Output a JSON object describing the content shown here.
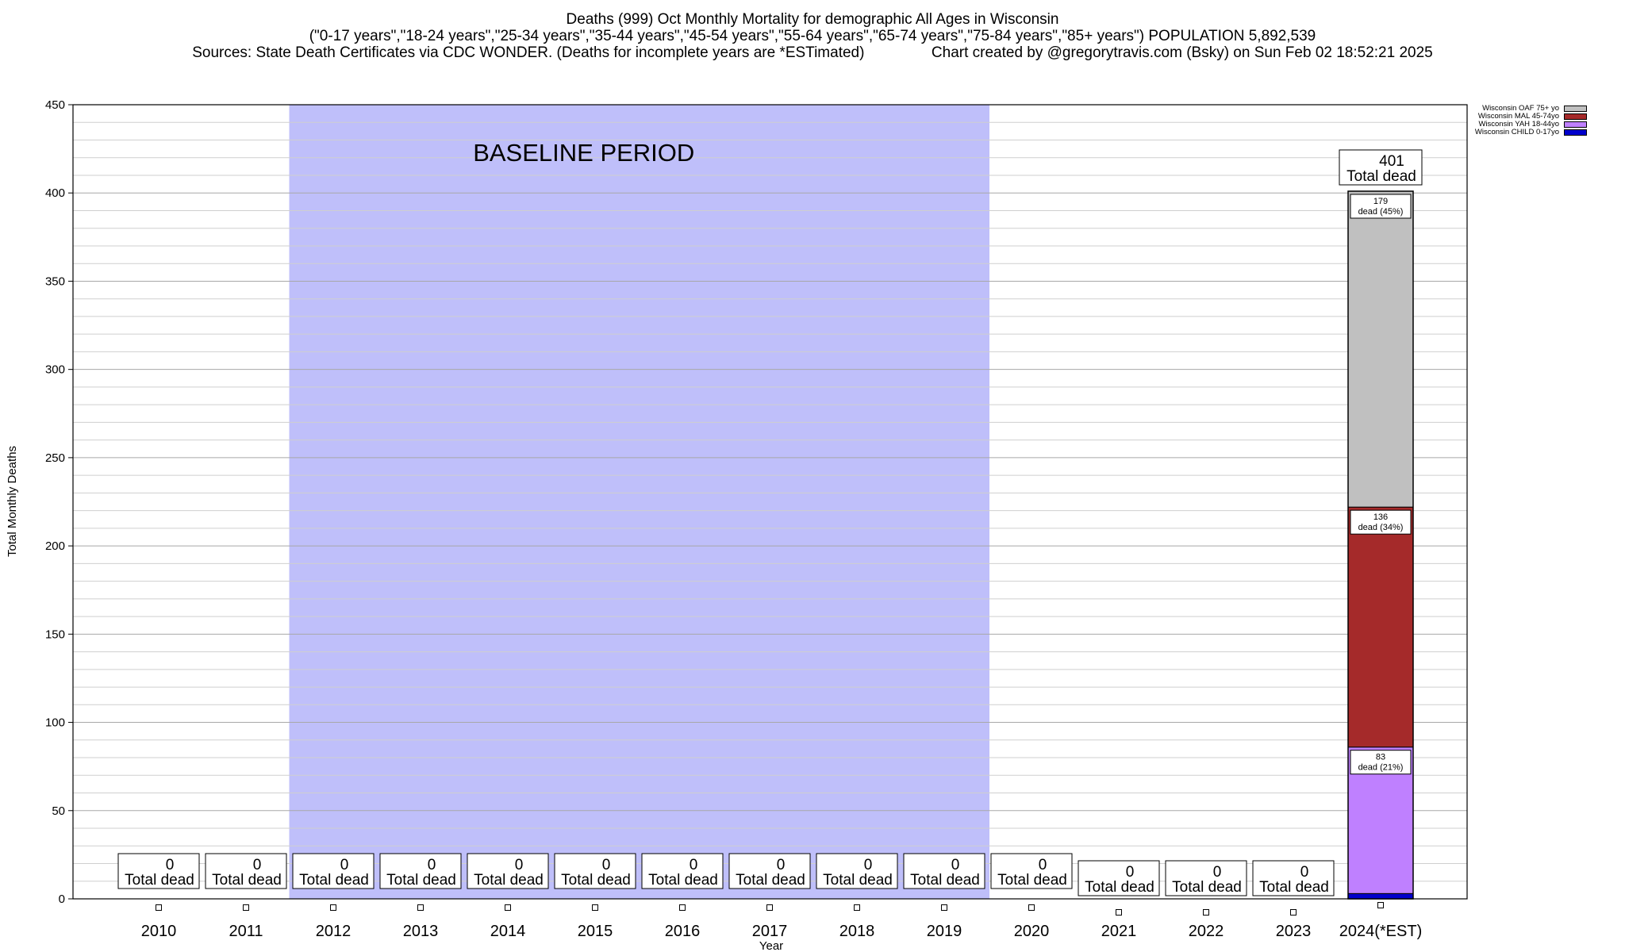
{
  "title": {
    "line1": "Deaths (999) Oct Monthly Mortality for demographic All Ages in Wisconsin",
    "line2": "(\"0-17 years\",\"18-24 years\",\"25-34 years\",\"35-44 years\",\"45-54 years\",\"55-64 years\",\"65-74 years\",\"75-84 years\",\"85+ years\") POPULATION 5,892,539",
    "line3a": "Sources: State Death Certificates via CDC WONDER. (Deaths for incomplete years are *ESTimated)",
    "line3b": "Chart created by @gregorytravis.com (Bsky) on Sun Feb 02 18:52:21 2025"
  },
  "legend": [
    {
      "label": "Wisconsin OAF 75+ yo",
      "color": "#c0c0c0"
    },
    {
      "label": "Wisconsin MAL 45-74yo",
      "color": "#a52a2a"
    },
    {
      "label": "Wisconsin YAH 18-44yo",
      "color": "#bf80ff"
    },
    {
      "label": "Wisconsin CHILD 0-17yo",
      "color": "#0000cd"
    }
  ],
  "chart_data": {
    "type": "bar",
    "stacked": true,
    "xlabel": "Year",
    "ylabel": "Total Monthly Deaths",
    "ylim": [
      0,
      450
    ],
    "y_ticks": [
      0,
      50,
      100,
      150,
      200,
      250,
      300,
      350,
      400,
      450
    ],
    "y_minor_step": 10,
    "grid": true,
    "legend_position": "top-right",
    "categories": [
      "2010",
      "2011",
      "2012",
      "2013",
      "2014",
      "2015",
      "2016",
      "2017",
      "2018",
      "2019",
      "2020",
      "2021",
      "2022",
      "2023",
      "2024(*EST)"
    ],
    "baseline_band": {
      "label": "BASELINE PERIOD",
      "from": "2012",
      "to": "2019",
      "color": "#bfbffa"
    },
    "series": [
      {
        "name": "Wisconsin CHILD 0-17yo",
        "color": "#0000cd",
        "values": [
          0,
          0,
          0,
          0,
          0,
          0,
          0,
          0,
          0,
          0,
          0,
          0,
          0,
          0,
          3
        ]
      },
      {
        "name": "Wisconsin YAH 18-44yo",
        "color": "#bf80ff",
        "values": [
          0,
          0,
          0,
          0,
          0,
          0,
          0,
          0,
          0,
          0,
          0,
          0,
          0,
          0,
          83
        ]
      },
      {
        "name": "Wisconsin MAL 45-74yo",
        "color": "#a52a2a",
        "values": [
          0,
          0,
          0,
          0,
          0,
          0,
          0,
          0,
          0,
          0,
          0,
          0,
          0,
          0,
          136
        ]
      },
      {
        "name": "Wisconsin OAF 75+ yo",
        "color": "#c0c0c0",
        "values": [
          0,
          0,
          0,
          0,
          0,
          0,
          0,
          0,
          0,
          0,
          0,
          0,
          0,
          0,
          179
        ]
      }
    ],
    "totals": [
      0,
      0,
      0,
      0,
      0,
      0,
      0,
      0,
      0,
      0,
      0,
      0,
      0,
      0,
      401
    ],
    "total_label_suffix": "Total dead",
    "segment_labels": [
      {
        "series": "Wisconsin OAF 75+ yo",
        "category": "2024(*EST)",
        "value": "179",
        "text": "dead (45%)"
      },
      {
        "series": "Wisconsin MAL 45-74yo",
        "category": "2024(*EST)",
        "value": "136",
        "text": "dead (34%)"
      },
      {
        "series": "Wisconsin YAH 18-44yo",
        "category": "2024(*EST)",
        "value": "83",
        "text": "dead (21%)"
      }
    ]
  }
}
